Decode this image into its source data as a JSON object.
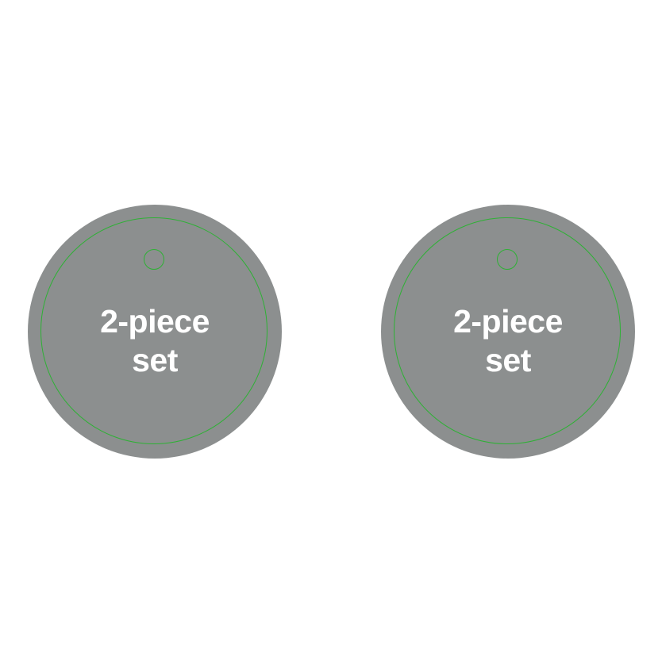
{
  "colors": {
    "tag_fill": "#8c8f8f",
    "cut_line": "#2eb135",
    "text": "#ffffff",
    "background": "#ffffff"
  },
  "tags": [
    {
      "line1": "2-piece",
      "line2": "set"
    },
    {
      "line1": "2-piece",
      "line2": "set"
    }
  ]
}
